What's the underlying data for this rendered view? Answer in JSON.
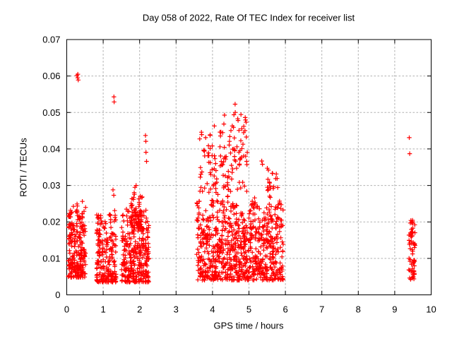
{
  "chart_data": {
    "type": "scatter",
    "title": "Day 058 of 2022, Rate Of TEC Index for receiver list",
    "xlabel": "GPS time / hours",
    "ylabel": "ROTI / TECUs",
    "xlim": [
      0,
      10
    ],
    "ylim": [
      0,
      0.07
    ],
    "x_ticks": [
      0,
      1,
      2,
      3,
      4,
      5,
      6,
      7,
      8,
      9,
      10
    ],
    "x_tick_labels": [
      "0",
      "1",
      "2",
      "3",
      "4",
      "5",
      "6",
      "7",
      "8",
      "9",
      "10"
    ],
    "y_ticks": [
      0,
      0.01,
      0.02,
      0.03,
      0.04,
      0.05,
      0.06,
      0.07
    ],
    "y_tick_labels": [
      "0",
      "0.01",
      "0.02",
      "0.03",
      "0.04",
      "0.05",
      "0.06",
      "0.07"
    ],
    "grid": true,
    "legend": null,
    "marker": {
      "shape": "plus",
      "size": 7
    },
    "colors": {
      "marker": "#ff0000",
      "axis": "#000000",
      "grid": "#b0b0b0",
      "background": "#ffffff"
    },
    "seed": 58,
    "clusters": [
      {
        "x": [
          0.04,
          0.52
        ],
        "y": [
          0.0048,
          0.0268
        ],
        "n": 240,
        "bias": 1.6,
        "cols": 9
      },
      {
        "x": [
          0.82,
          1.36
        ],
        "y": [
          0.0035,
          0.0243
        ],
        "n": 215,
        "bias": 1.7,
        "cols": 8
      },
      {
        "x": [
          1.5,
          2.26
        ],
        "y": [
          0.0035,
          0.0262
        ],
        "n": 300,
        "bias": 1.6,
        "cols": 12
      },
      {
        "x": [
          1.76,
          2.08
        ],
        "y": [
          0.018,
          0.0308
        ],
        "n": 70,
        "bias": 1.25,
        "cols": 6
      },
      {
        "x": [
          3.56,
          5.94
        ],
        "y": [
          0.004,
          0.028
        ],
        "n": 820,
        "bias": 1.35,
        "cols": 30
      },
      {
        "x": [
          3.64,
          4.12
        ],
        "y": [
          0.028,
          0.047
        ],
        "n": 46,
        "bias": 1.25,
        "cols": 6
      },
      {
        "x": [
          4.2,
          4.96
        ],
        "y": [
          0.028,
          0.0558
        ],
        "n": 88,
        "bias": 1.15,
        "cols": 8
      },
      {
        "x": [
          5.5,
          5.8
        ],
        "y": [
          0.028,
          0.0382
        ],
        "n": 18,
        "bias": 1.2,
        "cols": 4
      },
      {
        "x": [
          9.38,
          9.56
        ],
        "y": [
          0.0042,
          0.0225
        ],
        "n": 62,
        "bias": 1.5,
        "cols": 3
      }
    ],
    "outliers": [
      [
        0.28,
        0.0601
      ],
      [
        0.305,
        0.0605
      ],
      [
        0.3,
        0.0595
      ],
      [
        0.315,
        0.0589
      ],
      [
        1.295,
        0.0543
      ],
      [
        1.3,
        0.0529
      ],
      [
        1.27,
        0.0288
      ],
      [
        1.29,
        0.0273
      ],
      [
        1.315,
        0.0231
      ],
      [
        1.33,
        0.0218
      ],
      [
        2.16,
        0.0437
      ],
      [
        2.17,
        0.0421
      ],
      [
        2.175,
        0.0391
      ],
      [
        2.19,
        0.0366
      ],
      [
        4.05,
        0.0463
      ],
      [
        5.35,
        0.0367
      ],
      [
        5.37,
        0.0358
      ],
      [
        9.4,
        0.0431
      ],
      [
        9.41,
        0.0387
      ]
    ]
  }
}
